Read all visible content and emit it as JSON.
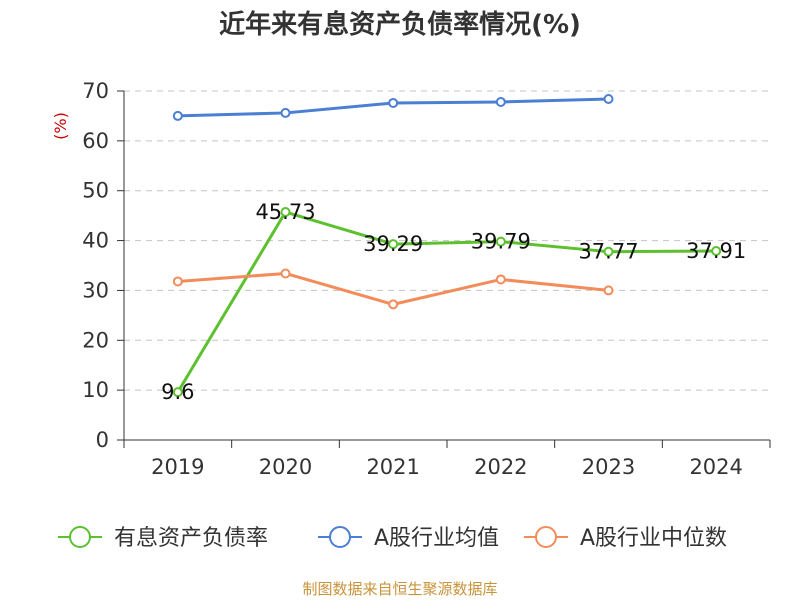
{
  "chart_data": {
    "type": "line",
    "title": "近年来有息资产负债率情况(%)",
    "ylabel": "(%)",
    "xlabel": "",
    "categories": [
      "2019",
      "2020",
      "2021",
      "2022",
      "2023",
      "2024"
    ],
    "ylim": [
      0,
      70
    ],
    "yticks": [
      0,
      10,
      20,
      30,
      40,
      50,
      60,
      70
    ],
    "grid": true,
    "legend_position": "bottom",
    "series": [
      {
        "name": "有息资产负债率",
        "color": "#5cc02f",
        "values": [
          9.6,
          45.73,
          39.29,
          39.79,
          37.77,
          37.91
        ],
        "labels": [
          "9.6",
          "45.73",
          "39.29",
          "39.79",
          "37.77",
          "37.91"
        ]
      },
      {
        "name": "A股行业均值",
        "color": "#4a7fd4",
        "values": [
          65.0,
          65.6,
          67.6,
          67.8,
          68.4,
          null
        ]
      },
      {
        "name": "A股行业中位数",
        "color": "#f28c5a",
        "values": [
          31.8,
          33.4,
          27.2,
          32.2,
          30.0,
          null
        ]
      }
    ],
    "source": "制图数据来自恒生聚源数据库"
  }
}
